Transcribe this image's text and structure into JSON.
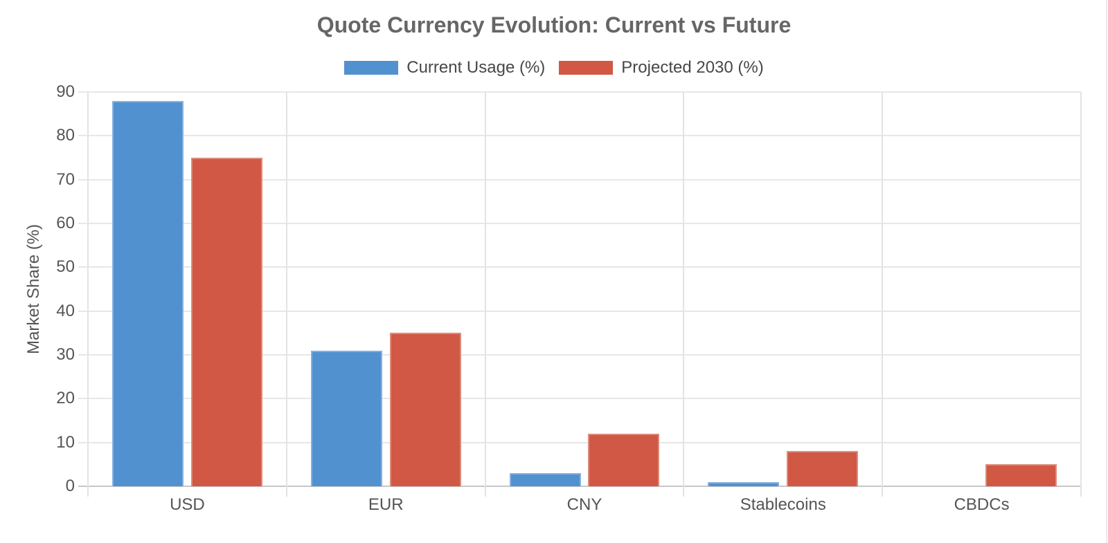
{
  "chart_data": {
    "type": "bar",
    "title": "Quote Currency Evolution: Current vs Future",
    "categories": [
      "USD",
      "EUR",
      "CNY",
      "Stablecoins",
      "CBDCs"
    ],
    "series": [
      {
        "name": "Current Usage (%)",
        "color": "#5291D0",
        "border_color": "#85B1DF",
        "values": [
          88,
          31,
          3,
          1,
          0
        ]
      },
      {
        "name": "Projected 2030 (%)",
        "color": "#D05845",
        "border_color": "#DE8C7C",
        "values": [
          75,
          35,
          12,
          8,
          5
        ]
      }
    ],
    "xlabel": "",
    "ylabel": "Market Share (%)",
    "ylim": [
      0,
      90
    ],
    "yticks": [
      0,
      10,
      20,
      30,
      40,
      50,
      60,
      70,
      80,
      90
    ],
    "grid": true,
    "legend_position": "top"
  },
  "style": {
    "hgrid_color": "#e7e7e7",
    "vgrid_color": "#e3e3e3",
    "zeroline_color": "#c6c6c6",
    "edge_line_color": "#eaeaea"
  }
}
